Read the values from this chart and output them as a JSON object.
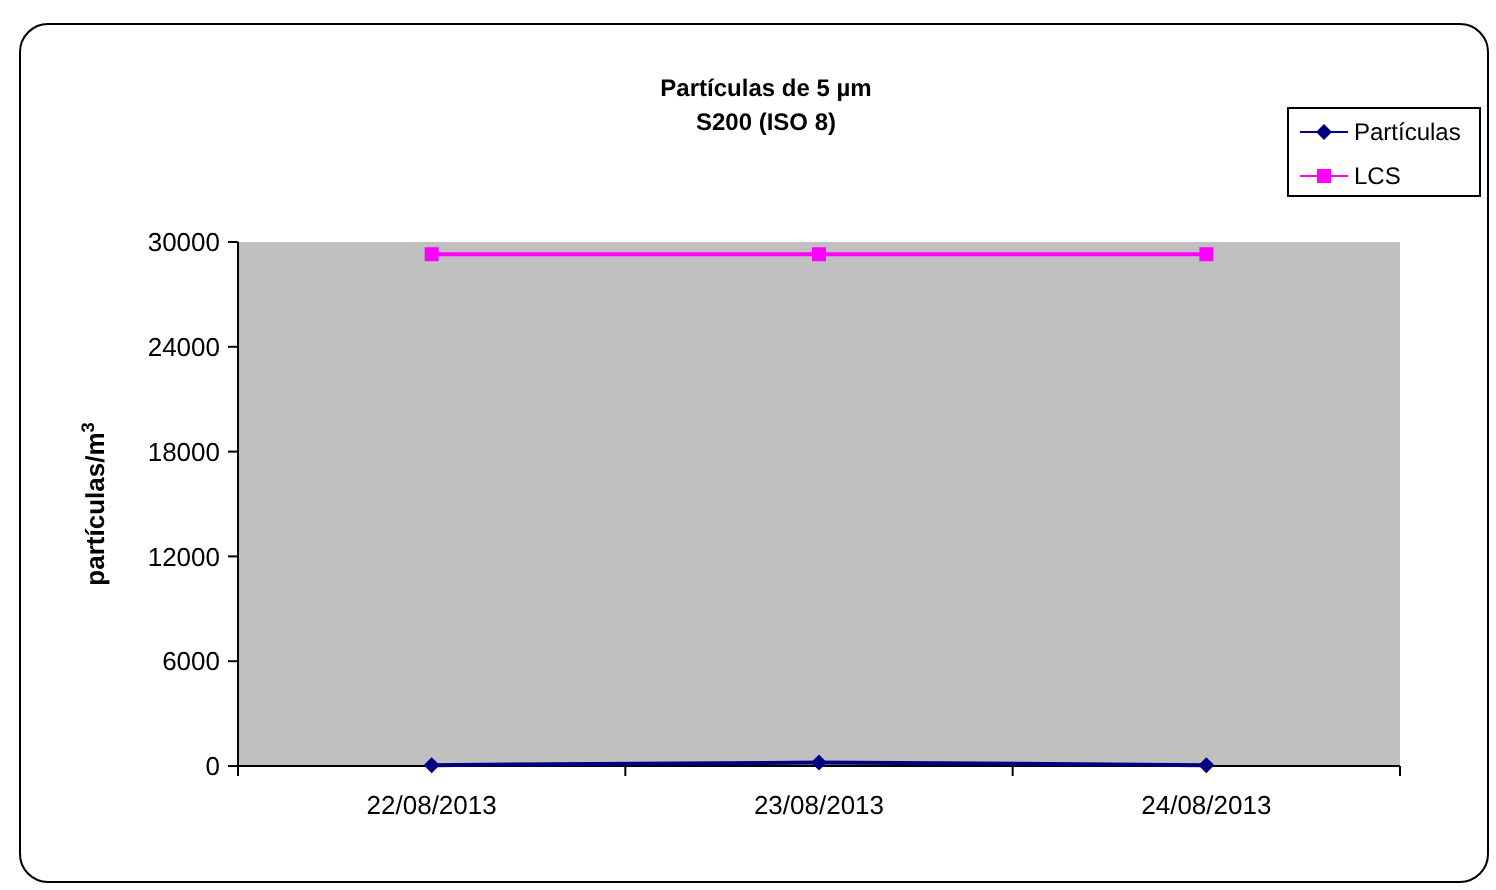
{
  "chart_data": {
    "type": "line",
    "title": "Partículas de 5 µm",
    "subtitle": "S200 (ISO 8)",
    "ylabel": "partículas/m$^{3}$",
    "categories": [
      "22/08/2013",
      "23/08/2013",
      "24/08/2013"
    ],
    "series": [
      {
        "name": "Partículas",
        "color": "#000080",
        "marker": "diamond",
        "values": [
          50,
          200,
          50
        ]
      },
      {
        "name": "LCS",
        "color": "#ff00ff",
        "marker": "square",
        "values": [
          29300,
          29300,
          29300
        ]
      }
    ],
    "ylim": [
      0,
      30000
    ],
    "yticks": [
      0,
      6000,
      12000,
      18000,
      24000,
      30000
    ],
    "grid": false,
    "legend": "top right"
  }
}
